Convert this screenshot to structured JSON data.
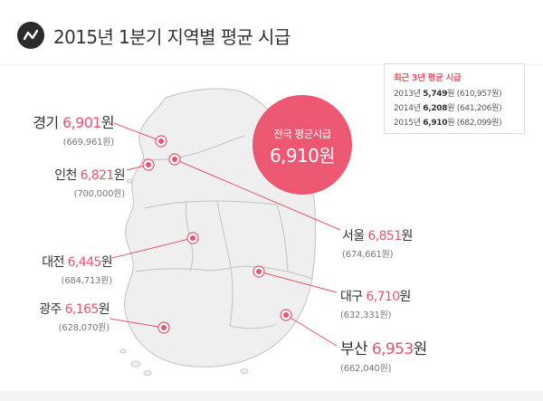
{
  "header": {
    "title": "2015년 1분기 지역별 평균 시급"
  },
  "info_box": {
    "title": "최근 3년 평균 시급",
    "rows": [
      {
        "year": "2013년",
        "wage": "5,749",
        "unit": "원",
        "monthly": "(610,957원)"
      },
      {
        "year": "2014년",
        "wage": "6,208",
        "unit": "원",
        "monthly": "(641,206원)"
      },
      {
        "year": "2015년",
        "wage": "6,910",
        "unit": "원",
        "monthly": "(682,099원)"
      }
    ]
  },
  "national": {
    "label": "전국 평균시급",
    "value": "6,910원"
  },
  "regions": [
    {
      "id": "gyeonggi",
      "name": "경기",
      "wage": "6,901",
      "unit": "원",
      "monthly": "(669,961원)"
    },
    {
      "id": "incheon",
      "name": "인천",
      "wage": "6,821",
      "unit": "원",
      "monthly": "(700,000원)"
    },
    {
      "id": "daejeon",
      "name": "대전",
      "wage": "6,445",
      "unit": "원",
      "monthly": "(684,713원)"
    },
    {
      "id": "gwangju",
      "name": "광주",
      "wage": "6,165",
      "unit": "원",
      "monthly": "(628,070원)"
    },
    {
      "id": "seoul",
      "name": "서울",
      "wage": "6,851",
      "unit": "원",
      "monthly": "(674,661원)"
    },
    {
      "id": "daegu",
      "name": "대구",
      "wage": "6,710",
      "unit": "원",
      "monthly": "(632,331원)"
    },
    {
      "id": "busan",
      "name": "부산",
      "wage": "6,953",
      "unit": "원",
      "monthly": "(662,040원)"
    }
  ],
  "colors": {
    "accent": "#e8546f",
    "circle": "#ec5872",
    "map_fill": "#efefef",
    "map_stroke": "#c9c9c9"
  }
}
